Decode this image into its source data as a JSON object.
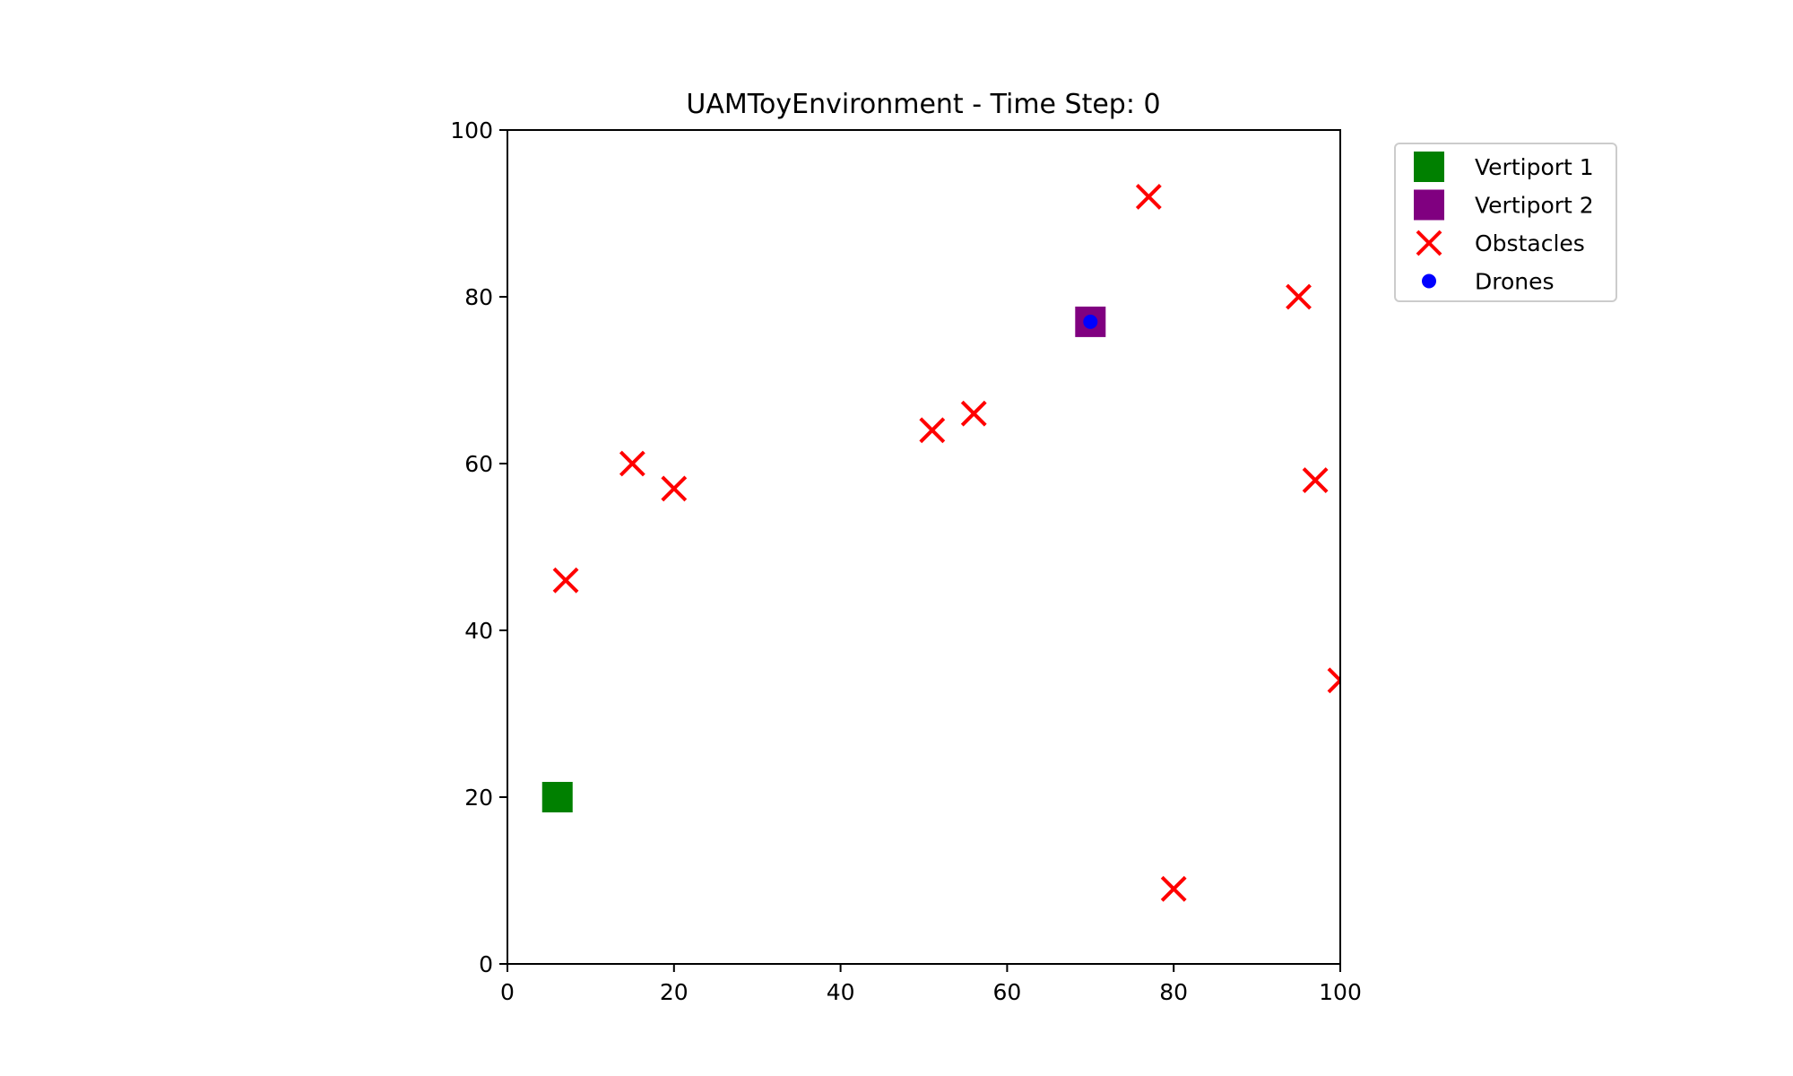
{
  "chart_data": {
    "type": "scatter",
    "title": "UAMToyEnvironment - Time Step: 0",
    "xlabel": "",
    "ylabel": "",
    "xlim": [
      0,
      100
    ],
    "ylim": [
      0,
      100
    ],
    "xticks": [
      "0",
      "20",
      "40",
      "60",
      "80",
      "100"
    ],
    "yticks": [
      "0",
      "20",
      "40",
      "60",
      "80",
      "100"
    ],
    "grid": false,
    "legend_position": "outside upper-right",
    "series": [
      {
        "name": "Vertiport 1",
        "marker": "square",
        "color": "#008000",
        "points": [
          [
            6,
            20
          ]
        ]
      },
      {
        "name": "Vertiport 2",
        "marker": "square",
        "color": "#800080",
        "points": [
          [
            70,
            77
          ]
        ]
      },
      {
        "name": "Obstacles",
        "marker": "x",
        "color": "#ff0000",
        "points": [
          [
            77,
            92
          ],
          [
            95,
            80
          ],
          [
            56,
            66
          ],
          [
            51,
            64
          ],
          [
            15,
            60
          ],
          [
            20,
            57
          ],
          [
            97,
            58
          ],
          [
            7,
            46
          ],
          [
            100,
            34
          ],
          [
            80,
            9
          ]
        ]
      },
      {
        "name": "Drones",
        "marker": "circle",
        "color": "#0000ff",
        "points": [
          [
            70,
            77
          ]
        ]
      }
    ]
  }
}
